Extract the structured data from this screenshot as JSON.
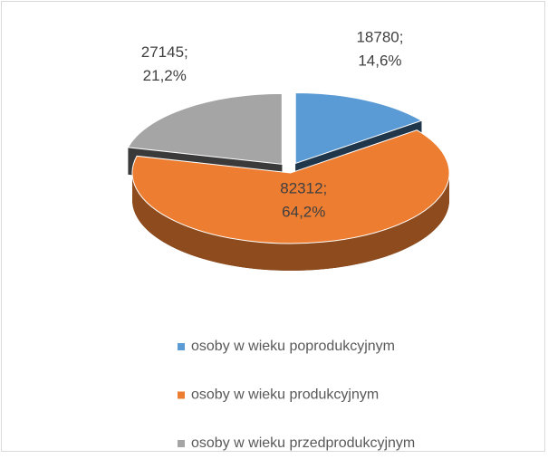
{
  "chart_data": {
    "type": "pie",
    "three_d": true,
    "categories": [
      "osoby w wieku poprodukcyjnym",
      "osoby w wieku produkcyjnym",
      "osoby w wieku przedprodukcyjnym"
    ],
    "values": [
      18780,
      82312,
      27145
    ],
    "value_labels": [
      "18780; 14,6%",
      "82312; 64,2%",
      "27145; 21,2%"
    ],
    "colors": [
      "#5b9bd5",
      "#ed7d31",
      "#a5a5a5"
    ],
    "legend": "bottom"
  }
}
